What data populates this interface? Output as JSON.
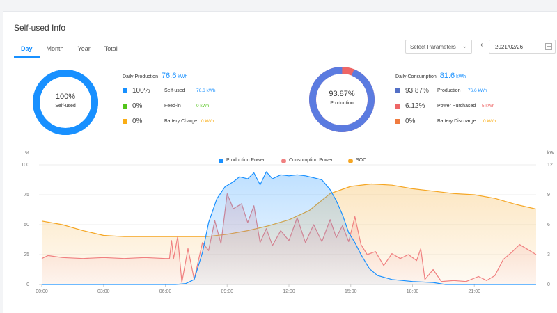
{
  "title": "Self-used Info",
  "tabs": [
    {
      "label": "Day",
      "active": true
    },
    {
      "label": "Month",
      "active": false
    },
    {
      "label": "Year",
      "active": false
    },
    {
      "label": "Total",
      "active": false
    }
  ],
  "controls": {
    "select_label": "Select Parameters",
    "date_value": "2021/02/26"
  },
  "production_panel": {
    "donut_percent": "100%",
    "donut_label": "Self-used",
    "donut_fraction": 1.0,
    "header_label": "Daily Production",
    "header_value": "76.6",
    "header_unit": "kWh",
    "rows": [
      {
        "percent": "100%",
        "name": "Self-used",
        "value": "76.6 kWh",
        "color": "#1890ff"
      },
      {
        "percent": "0%",
        "name": "Feed-in",
        "value": "0 kWh",
        "color": "#52c41a"
      },
      {
        "percent": "0%",
        "name": "Battery Charge",
        "value": "0 kWh",
        "color": "#faad14"
      }
    ]
  },
  "consumption_panel": {
    "donut_percent": "93.87%",
    "donut_label": "Production",
    "donut_fraction": 0.9387,
    "header_label": "Daily Consumption",
    "header_value": "81.6",
    "header_unit": "kWh",
    "rows": [
      {
        "percent": "93.87%",
        "name": "Production",
        "value": "76.6 kWh",
        "color": "#5470c6"
      },
      {
        "percent": "6.12%",
        "name": "Power Purchased",
        "value": "5 kWh",
        "color": "#ee6666"
      },
      {
        "percent": "0%",
        "name": "Battery Discharge",
        "value": "0 kWh",
        "color": "#f07b3f"
      }
    ]
  },
  "colors": {
    "accent": "#1890ff",
    "production": "#1890ff",
    "consumption": "#f08080",
    "soc": "#f5a623"
  },
  "chart_data": {
    "type": "line",
    "legend": [
      "Production Power",
      "Consumption Power",
      "SOC"
    ],
    "legend_position": "top-center",
    "left_axis_unit": "%",
    "right_axis_unit": "kW",
    "left_ticks": [
      "0",
      "25",
      "50",
      "75",
      "100"
    ],
    "right_ticks": [
      "0",
      "3",
      "6",
      "9",
      "12"
    ],
    "x_ticks": [
      "00:00",
      "03:00",
      "06:00",
      "09:00",
      "12:00",
      "15:00",
      "18:00",
      "21:00"
    ],
    "x_range_hours": [
      0,
      24
    ],
    "left_ylim": [
      0,
      100
    ],
    "right_ylim": [
      0,
      12
    ],
    "grid": true,
    "series": [
      {
        "name": "Production Power",
        "axis": "right",
        "points": [
          [
            0,
            0
          ],
          [
            6.5,
            0
          ],
          [
            7.0,
            0.1
          ],
          [
            7.4,
            0.5
          ],
          [
            7.8,
            3.2
          ],
          [
            8.1,
            6.2
          ],
          [
            8.5,
            8.6
          ],
          [
            8.9,
            9.8
          ],
          [
            9.3,
            10.3
          ],
          [
            9.6,
            10.8
          ],
          [
            10.0,
            10.6
          ],
          [
            10.3,
            11.2
          ],
          [
            10.6,
            10.0
          ],
          [
            10.9,
            11.3
          ],
          [
            11.2,
            10.6
          ],
          [
            11.6,
            11.0
          ],
          [
            12.0,
            10.9
          ],
          [
            12.4,
            11.0
          ],
          [
            12.8,
            10.9
          ],
          [
            13.2,
            10.7
          ],
          [
            13.6,
            10.5
          ],
          [
            14.0,
            9.5
          ],
          [
            14.3,
            8.4
          ],
          [
            14.6,
            7.0
          ],
          [
            14.9,
            5.2
          ],
          [
            15.2,
            4.2
          ],
          [
            15.5,
            3.0
          ],
          [
            15.9,
            1.6
          ],
          [
            16.3,
            0.9
          ],
          [
            17.0,
            0.5
          ],
          [
            18.0,
            0.3
          ],
          [
            19.0,
            0.2
          ],
          [
            19.6,
            0
          ],
          [
            24,
            0
          ]
        ]
      },
      {
        "name": "Consumption Power",
        "axis": "right",
        "points": [
          [
            0,
            2.6
          ],
          [
            0.3,
            2.9
          ],
          [
            1.0,
            2.7
          ],
          [
            2.0,
            2.6
          ],
          [
            3.0,
            2.7
          ],
          [
            4.0,
            2.6
          ],
          [
            5.0,
            2.7
          ],
          [
            6.0,
            2.6
          ],
          [
            6.2,
            2.6
          ],
          [
            6.3,
            4.4
          ],
          [
            6.4,
            2.6
          ],
          [
            6.6,
            4.8
          ],
          [
            6.8,
            0.2
          ],
          [
            7.1,
            3.6
          ],
          [
            7.4,
            0.5
          ],
          [
            7.8,
            4.2
          ],
          [
            8.1,
            3.4
          ],
          [
            8.4,
            6.4
          ],
          [
            8.7,
            4.1
          ],
          [
            9.0,
            9.1
          ],
          [
            9.3,
            7.6
          ],
          [
            9.7,
            8.1
          ],
          [
            10.0,
            6.2
          ],
          [
            10.3,
            7.9
          ],
          [
            10.6,
            4.2
          ],
          [
            10.9,
            5.6
          ],
          [
            11.2,
            3.9
          ],
          [
            11.6,
            5.4
          ],
          [
            12.0,
            4.4
          ],
          [
            12.4,
            6.7
          ],
          [
            12.8,
            4.2
          ],
          [
            13.2,
            6.0
          ],
          [
            13.6,
            4.3
          ],
          [
            14.0,
            6.5
          ],
          [
            14.3,
            4.7
          ],
          [
            14.6,
            5.9
          ],
          [
            14.9,
            4.3
          ],
          [
            15.2,
            6.8
          ],
          [
            15.5,
            4.0
          ],
          [
            15.8,
            3.0
          ],
          [
            16.2,
            3.3
          ],
          [
            16.6,
            1.9
          ],
          [
            17.0,
            3.1
          ],
          [
            17.4,
            2.6
          ],
          [
            17.8,
            3.0
          ],
          [
            18.2,
            2.4
          ],
          [
            18.4,
            3.6
          ],
          [
            18.6,
            0.5
          ],
          [
            19.0,
            1.5
          ],
          [
            19.4,
            0.3
          ],
          [
            20.0,
            0.4
          ],
          [
            20.6,
            0.3
          ],
          [
            21.2,
            0.8
          ],
          [
            21.6,
            0.4
          ],
          [
            22.0,
            0.9
          ],
          [
            22.4,
            2.5
          ],
          [
            22.8,
            3.2
          ],
          [
            23.2,
            4.0
          ],
          [
            23.6,
            3.5
          ],
          [
            24,
            3.0
          ]
        ]
      },
      {
        "name": "SOC",
        "axis": "left",
        "points": [
          [
            0,
            53
          ],
          [
            1.0,
            50
          ],
          [
            2.0,
            45
          ],
          [
            3.0,
            41
          ],
          [
            4.0,
            40
          ],
          [
            5.0,
            40
          ],
          [
            6.0,
            40
          ],
          [
            7.0,
            40
          ],
          [
            8.0,
            40
          ],
          [
            9.0,
            42
          ],
          [
            10.0,
            45
          ],
          [
            11.0,
            49
          ],
          [
            12.0,
            54
          ],
          [
            13.0,
            62
          ],
          [
            14.0,
            76
          ],
          [
            15.0,
            82
          ],
          [
            16.0,
            84
          ],
          [
            17.0,
            83
          ],
          [
            18.0,
            80
          ],
          [
            19.0,
            78
          ],
          [
            20.0,
            76
          ],
          [
            21.0,
            75
          ],
          [
            22.0,
            72
          ],
          [
            23.0,
            67
          ],
          [
            24,
            63
          ]
        ]
      }
    ]
  }
}
